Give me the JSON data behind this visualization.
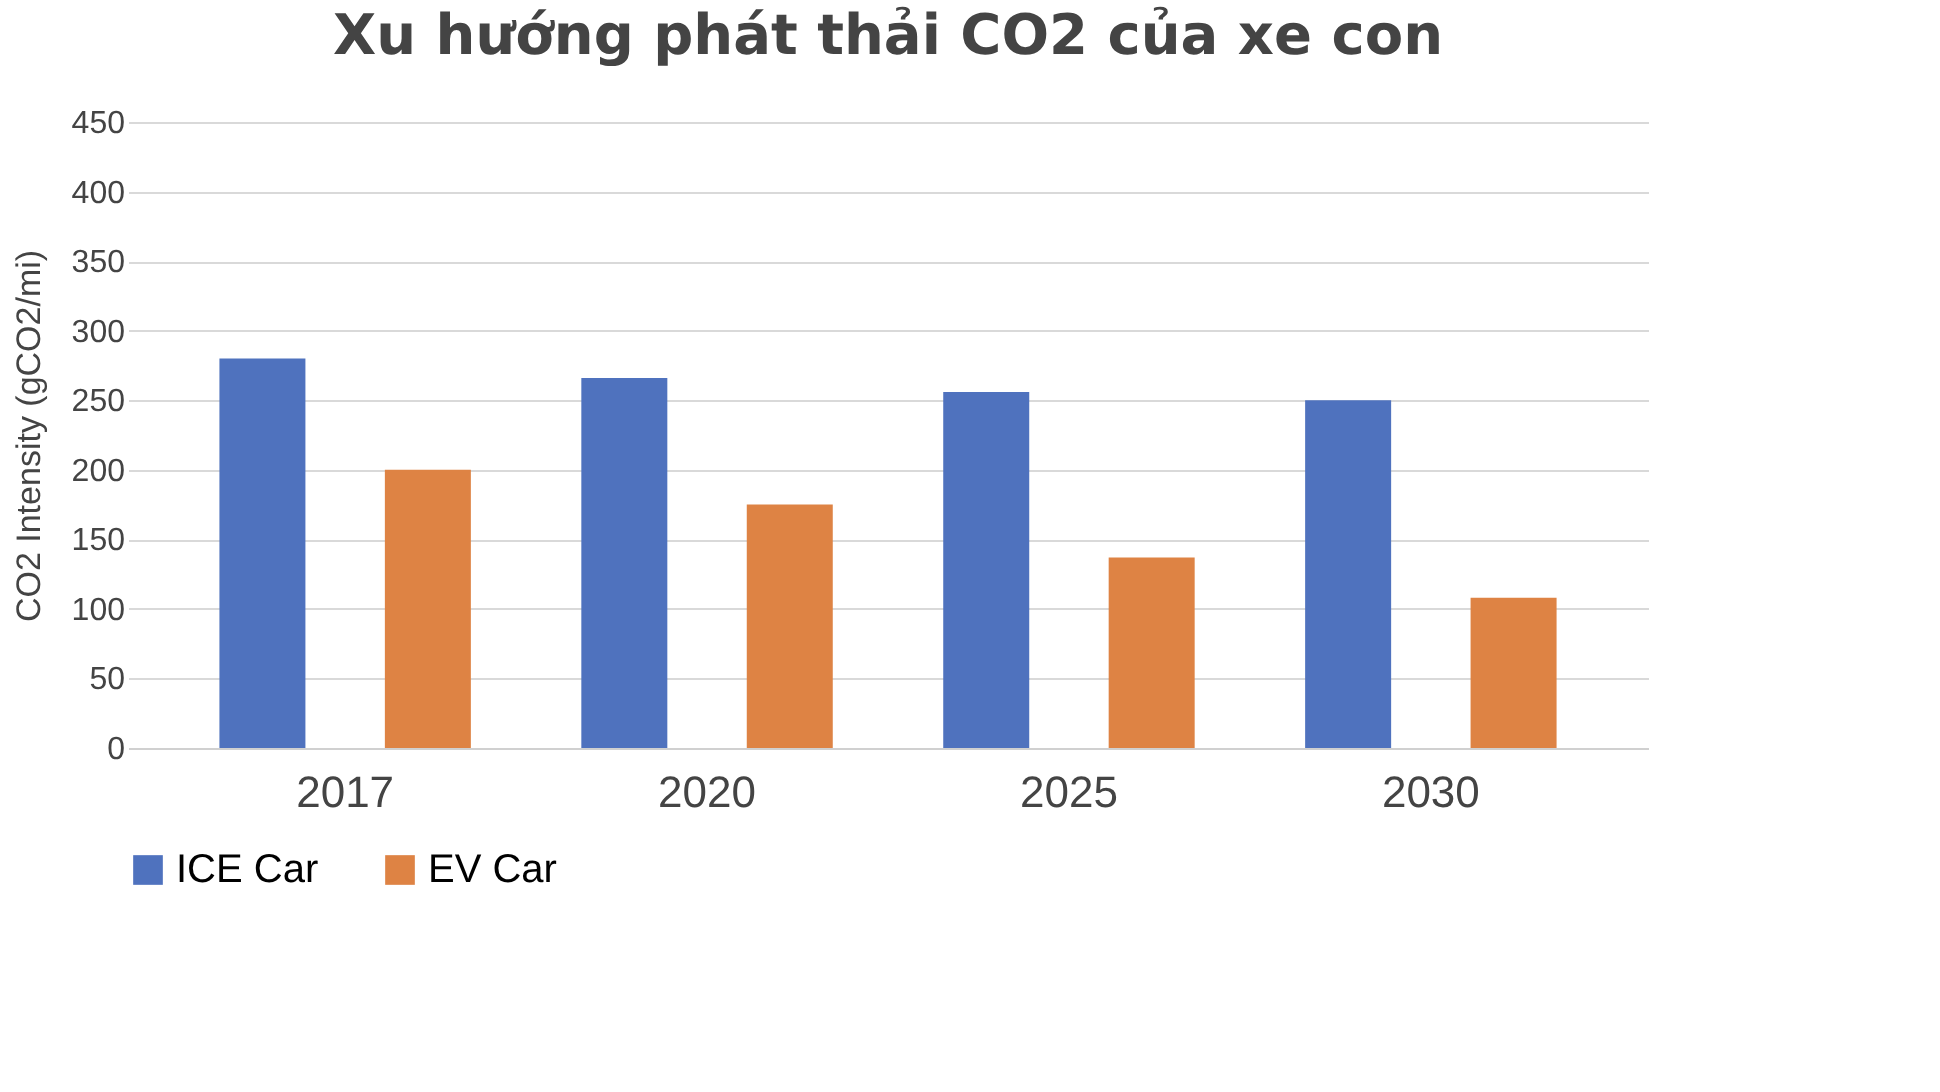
{
  "chart_data": {
    "type": "bar",
    "title": "Xu hướng phát thải CO2 của xe con",
    "ylabel": "CO2 Intensity (gCO2/mi)",
    "categories": [
      "2017",
      "2020",
      "2025",
      "2030"
    ],
    "series": [
      {
        "name": "ICE Car",
        "color": "#4f72be",
        "values": [
          280,
          266,
          256,
          250
        ]
      },
      {
        "name": "EV Car",
        "color": "#de8344",
        "values": [
          200,
          175,
          137,
          108
        ]
      }
    ],
    "ylim": [
      0,
      450
    ],
    "yticks": [
      0,
      50,
      100,
      150,
      200,
      250,
      300,
      350,
      400,
      450
    ],
    "grid": "y",
    "legend": "bottom"
  }
}
